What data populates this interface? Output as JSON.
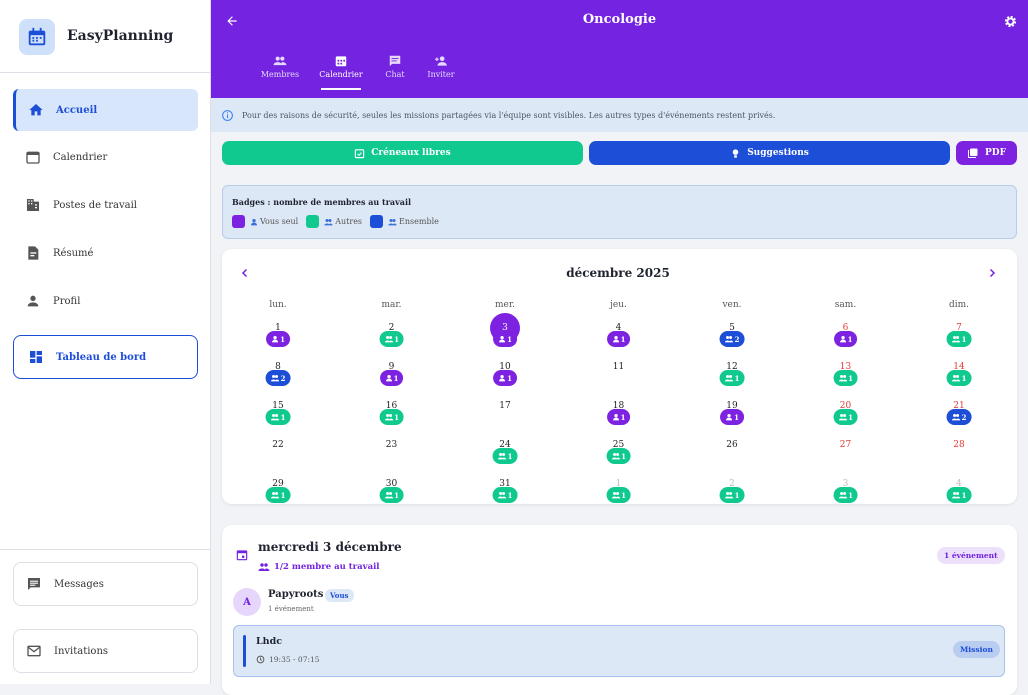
{
  "sidebar": {
    "brand": "EasyPlanning",
    "nav": [
      "Accueil",
      "Calendrier",
      "Postes de travail",
      "Résumé",
      "Profil",
      "Tableau de bord"
    ],
    "footer": [
      "Messages",
      "Invitations"
    ]
  },
  "header": {
    "title": "Oncologie",
    "tabs": [
      "Membres",
      "Calendrier",
      "Chat",
      "Inviter"
    ]
  },
  "notice": "Pour des raisons de sécurité, seules les missions partagées via l'équipe sont visibles. Les autres types d'événements restent privés.",
  "actions": [
    "Créneaux libres",
    "Suggestions",
    "PDF"
  ],
  "legend": {
    "title": "Badges : nombre de membres au travail",
    "items": [
      {
        "label": "Vous seul",
        "color": "#7c22e0"
      },
      {
        "label": "Autres",
        "color": "#10c98f"
      },
      {
        "label": "Ensemble",
        "color": "#1d4ed8"
      }
    ]
  },
  "calendar": {
    "month": "décembre 2025",
    "weekdays": [
      "lun.",
      "mar.",
      "mer.",
      "jeu.",
      "ven.",
      "sam.",
      "dim."
    ],
    "selected_day": 3,
    "days": [
      {
        "day": 1,
        "count": 1,
        "kind": 0
      },
      {
        "day": 2,
        "count": 1,
        "kind": 1
      },
      {
        "day": 3,
        "count": 1,
        "kind": 0
      },
      {
        "day": 4,
        "count": 1,
        "kind": 0
      },
      {
        "day": 5,
        "count": 2,
        "kind": 2
      },
      {
        "day": 6,
        "count": 1,
        "kind": 0
      },
      {
        "day": 7,
        "count": 1,
        "kind": 1
      },
      {
        "day": 8,
        "count": 2,
        "kind": 2
      },
      {
        "day": 9,
        "count": 1,
        "kind": 0
      },
      {
        "day": 10,
        "count": 1,
        "kind": 0
      },
      {
        "day": 11
      },
      {
        "day": 12,
        "count": 1,
        "kind": 1
      },
      {
        "day": 13,
        "count": 1,
        "kind": 1
      },
      {
        "day": 14,
        "count": 1,
        "kind": 1
      },
      {
        "day": 15,
        "count": 1,
        "kind": 1
      },
      {
        "day": 16,
        "count": 1,
        "kind": 1
      },
      {
        "day": 17
      },
      {
        "day": 18,
        "count": 1,
        "kind": 0
      },
      {
        "day": 19,
        "count": 1,
        "kind": 0
      },
      {
        "day": 20,
        "count": 1,
        "kind": 1
      },
      {
        "day": 21,
        "count": 2,
        "kind": 2
      },
      {
        "day": 22
      },
      {
        "day": 23
      },
      {
        "day": 24,
        "count": 1,
        "kind": 1
      },
      {
        "day": 25,
        "count": 1,
        "kind": 1
      },
      {
        "day": 26
      },
      {
        "day": 27
      },
      {
        "day": 28
      },
      {
        "day": 29,
        "count": 1,
        "kind": 1
      },
      {
        "day": 30,
        "count": 1,
        "kind": 1
      },
      {
        "day": 31,
        "count": 1,
        "kind": 1
      },
      {
        "day": 1,
        "count": 1,
        "kind": 1,
        "outside": true
      },
      {
        "day": 2,
        "count": 1,
        "kind": 1,
        "outside": true
      },
      {
        "day": 3,
        "count": 1,
        "kind": 1,
        "outside": true
      },
      {
        "day": 4,
        "count": 1,
        "kind": 1,
        "outside": true
      }
    ]
  },
  "detail": {
    "date": "mercredi 3 décembre",
    "workers": "1/2 membre au travail",
    "events_count": "1 événement",
    "member": {
      "initial": "A",
      "name": "Papyroots",
      "tag": "Vous",
      "events": "1 événement"
    },
    "event": {
      "title": "Lhdc",
      "time": "19:35 - 07:15",
      "type": "Mission"
    }
  }
}
